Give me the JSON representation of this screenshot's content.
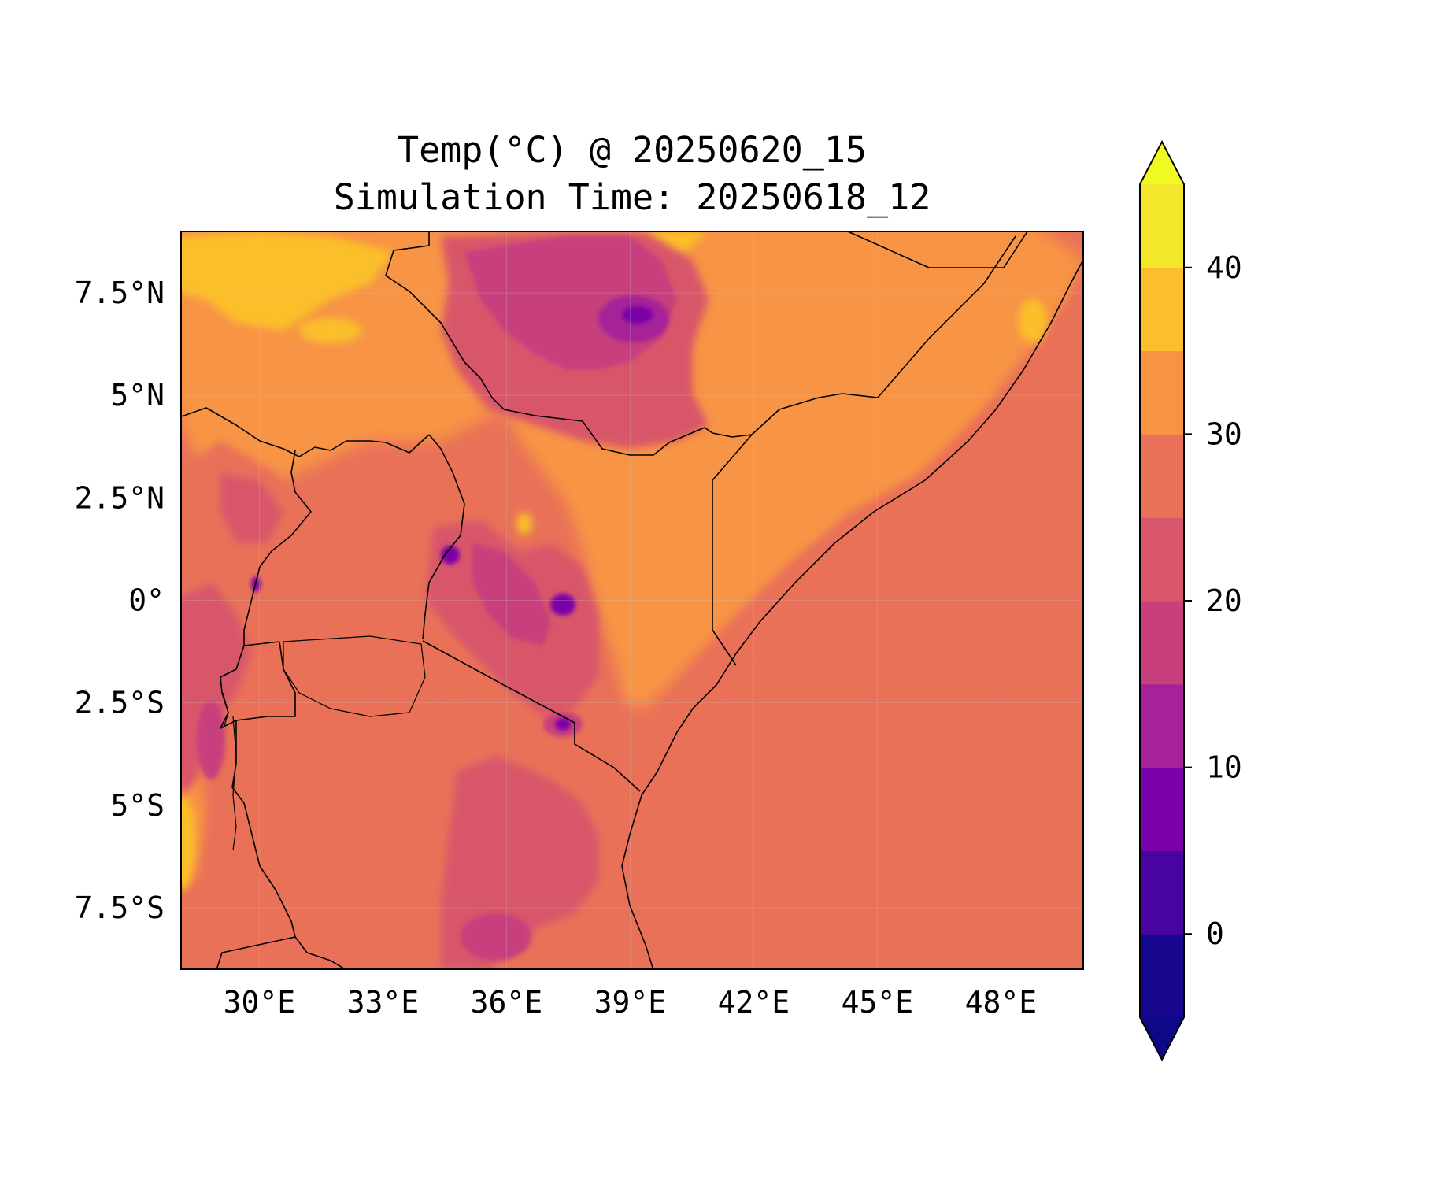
{
  "title_line1": "Temp(°C) @ 20250620_15",
  "title_line2": "Simulation Time: 20250618_12",
  "map": {
    "projection": "PlateCarree",
    "lon_range": [
      28.1,
      50.0
    ],
    "lat_range": [
      -9.0,
      9.0
    ],
    "lon_ticks": [
      30,
      33,
      36,
      39,
      42,
      45,
      48
    ],
    "lon_tick_labels": [
      "30°E",
      "33°E",
      "36°E",
      "39°E",
      "42°E",
      "45°E",
      "48°E"
    ],
    "lat_ticks": [
      7.5,
      5,
      2.5,
      0,
      -2.5,
      -5,
      -7.5
    ],
    "lat_tick_labels": [
      "7.5°N",
      "5°N",
      "2.5°N",
      "0°",
      "2.5°S",
      "5°S",
      "7.5°S"
    ],
    "gridlines": true,
    "ocean_temperature_band": "25-30",
    "features": [
      "coastline",
      "country borders",
      "Lake Victoria",
      "Lake Tanganyika",
      "Lake Kivu"
    ]
  },
  "colorbar": {
    "colormap": "plasma",
    "extend": "both",
    "min": -5,
    "max": 45,
    "levels": [
      -5,
      0,
      5,
      10,
      15,
      20,
      25,
      30,
      35,
      40,
      45
    ],
    "ticks": [
      0,
      10,
      20,
      30,
      40
    ],
    "tick_labels": [
      "0",
      "10",
      "20",
      "30",
      "40"
    ],
    "colors": [
      "#16078e",
      "#4903a0",
      "#7b02a8",
      "#a62298",
      "#c7407d",
      "#d8576b",
      "#e97158",
      "#f79444",
      "#fbbf2c",
      "#f4e62b"
    ],
    "under_color": "#0d0887",
    "over_color": "#f0f921"
  }
}
